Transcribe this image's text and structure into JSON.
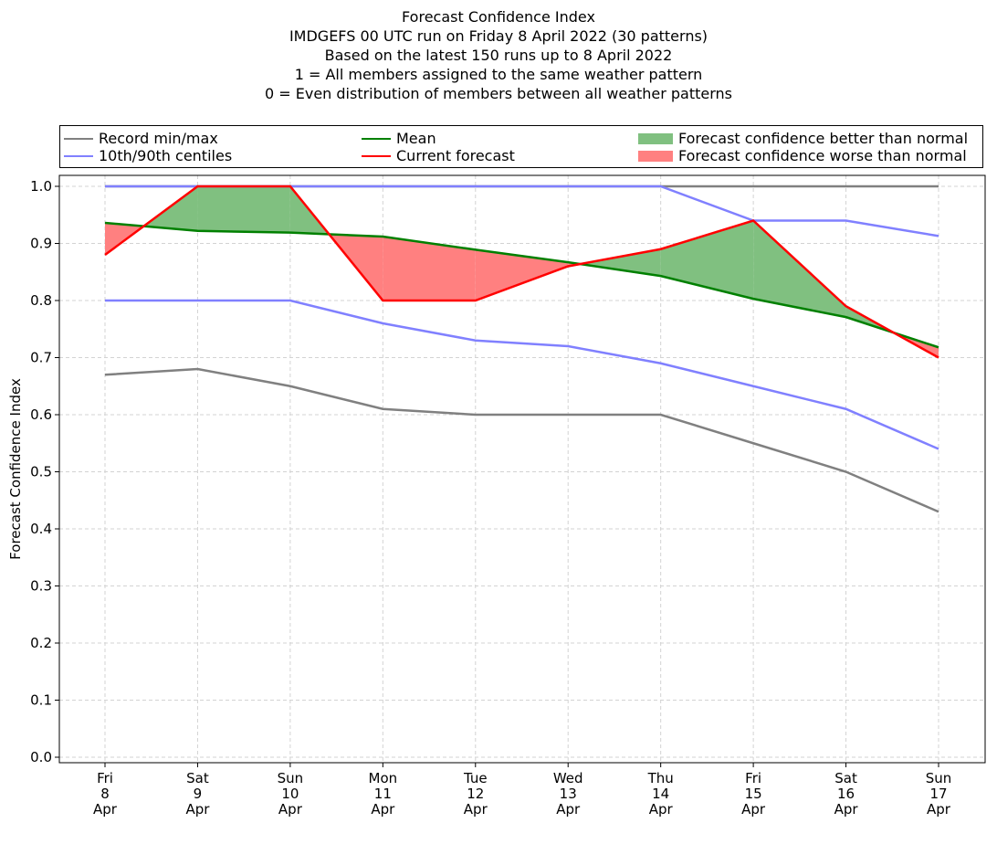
{
  "chart_data": {
    "type": "line",
    "title": [
      "Forecast Confidence Index",
      "IMDGEFS 00 UTC run on Friday 8 April 2022 (30 patterns)",
      "Based on the latest 150 runs up to 8 April 2022",
      "1 = All members assigned to the same weather pattern",
      "0 = Even distribution of members between all weather patterns"
    ],
    "ylabel": "Forecast Confidence Index",
    "xlabel": "",
    "categories": [
      [
        "Fri",
        "8",
        "Apr"
      ],
      [
        "Sat",
        "9",
        "Apr"
      ],
      [
        "Sun",
        "10",
        "Apr"
      ],
      [
        "Mon",
        "11",
        "Apr"
      ],
      [
        "Tue",
        "12",
        "Apr"
      ],
      [
        "Wed",
        "13",
        "Apr"
      ],
      [
        "Thu",
        "14",
        "Apr"
      ],
      [
        "Fri",
        "15",
        "Apr"
      ],
      [
        "Sat",
        "16",
        "Apr"
      ],
      [
        "Sun",
        "17",
        "Apr"
      ]
    ],
    "ylim": [
      0,
      1.0
    ],
    "yticks": [
      "0.0",
      "0.1",
      "0.2",
      "0.3",
      "0.4",
      "0.5",
      "0.6",
      "0.7",
      "0.8",
      "0.9",
      "1.0"
    ],
    "grid": true,
    "legend_placement": "top, above plot",
    "series": [
      {
        "name": "Record max",
        "values": [
          1.0,
          1.0,
          1.0,
          1.0,
          1.0,
          1.0,
          1.0,
          1.0,
          1.0,
          1.0
        ],
        "color": "#808080"
      },
      {
        "name": "Record min",
        "values": [
          0.67,
          0.68,
          0.65,
          0.61,
          0.6,
          0.6,
          0.6,
          0.55,
          0.5,
          0.43
        ],
        "color": "#808080"
      },
      {
        "name": "90th centile",
        "values": [
          1.0,
          1.0,
          1.0,
          1.0,
          1.0,
          1.0,
          1.0,
          0.94,
          0.94,
          0.913
        ],
        "color": "#8080ff"
      },
      {
        "name": "10th centile",
        "values": [
          0.8,
          0.8,
          0.8,
          0.76,
          0.73,
          0.72,
          0.69,
          0.65,
          0.61,
          0.54
        ],
        "color": "#8080ff"
      },
      {
        "name": "Mean",
        "values": [
          0.936,
          0.922,
          0.919,
          0.912,
          0.889,
          0.867,
          0.843,
          0.803,
          0.771,
          0.718
        ],
        "color": "#008000"
      },
      {
        "name": "Current forecast",
        "values": [
          0.88,
          1.0,
          1.0,
          0.8,
          0.8,
          0.86,
          0.89,
          0.94,
          0.79,
          0.7
        ],
        "color": "#ff0000"
      }
    ],
    "legend": {
      "record": "Record min/max",
      "centiles": "10th/90th centiles",
      "mean": "Mean",
      "current": "Current forecast",
      "better": "Forecast confidence better than normal",
      "worse": "Forecast confidence worse than normal"
    },
    "fill_colors": {
      "better": "#80c080",
      "worse": "#ff8080"
    }
  }
}
